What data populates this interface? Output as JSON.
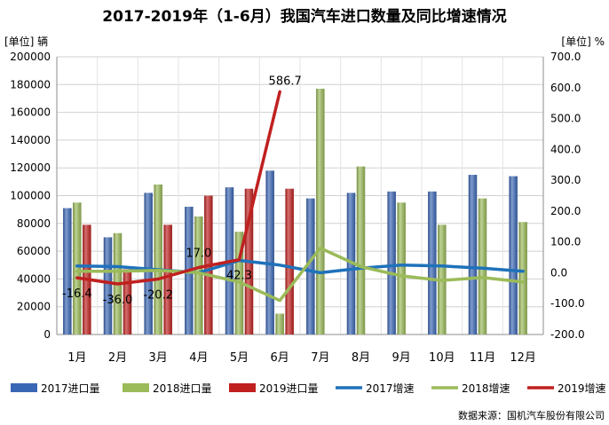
{
  "chart_data": {
    "type": "bar",
    "title": "2017-2019年（1-6月）我国汽车进口数量及同比增速情况",
    "y_left_label": "[单位]   辆",
    "y_right_label": "[单位]   %",
    "source": "数据来源：国机汽车股份有限公司",
    "categories": [
      "1月",
      "2月",
      "3月",
      "4月",
      "5月",
      "6月",
      "7月",
      "8月",
      "9月",
      "10月",
      "11月",
      "12月"
    ],
    "ylim_left": [
      0,
      200000
    ],
    "ylim_right": [
      -200,
      700
    ],
    "yticks_left": [
      "0",
      "20000",
      "40000",
      "60000",
      "80000",
      "100000",
      "120000",
      "140000",
      "160000",
      "180000",
      "200000"
    ],
    "yticks_right": [
      "-200.0",
      "-100.0",
      "0.0",
      "100.0",
      "200.0",
      "300.0",
      "400.0",
      "500.0",
      "600.0",
      "700.0"
    ],
    "bar_series": [
      {
        "name": "2017进口量",
        "color": "#3a67b5",
        "values": [
          91000,
          70000,
          102000,
          92000,
          106000,
          118000,
          98000,
          102000,
          103000,
          103000,
          115000,
          114000
        ]
      },
      {
        "name": "2018进口量",
        "color": "#9bbb59",
        "values": [
          95000,
          73000,
          108000,
          85000,
          74000,
          15000,
          177000,
          121000,
          95000,
          79000,
          98000,
          81000
        ]
      },
      {
        "name": "2019进口量",
        "color": "#c0201f",
        "values": [
          79000,
          47000,
          79000,
          100000,
          105000,
          105000,
          null,
          null,
          null,
          null,
          null,
          null
        ]
      }
    ],
    "line_series": [
      {
        "name": "2017增速",
        "color": "#1f72bb",
        "values": [
          22,
          20,
          10,
          0,
          40,
          25,
          0,
          15,
          25,
          22,
          15,
          5
        ]
      },
      {
        "name": "2018增速",
        "color": "#9bbb59",
        "values": [
          5,
          5,
          8,
          0,
          -30,
          -90,
          80,
          20,
          -10,
          -25,
          -15,
          -30
        ]
      },
      {
        "name": "2019增速",
        "color": "#c0201f",
        "values": [
          -16.4,
          -36.0,
          -20.2,
          17.0,
          42.3,
          586.7,
          null,
          null,
          null,
          null,
          null,
          null
        ]
      }
    ],
    "data_labels": [
      "-16.4",
      "-36.0",
      "-20.2",
      "17.0",
      "42.3",
      "586.7"
    ],
    "legend_position": "bottom",
    "grid": true
  }
}
